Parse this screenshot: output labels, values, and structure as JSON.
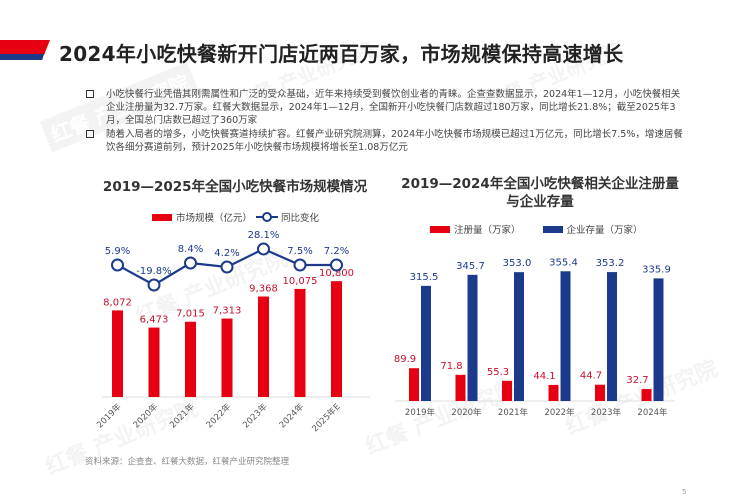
{
  "page": {
    "title": "2024年小吃快餐新开门店近两百万家，市场规模保持高速增长",
    "bullets": [
      "小吃快餐行业凭借其刚需属性和广泛的受众基础，近年来持续受到餐饮创业者的青睐。企查查数据显示，2024年1—12月，小吃快餐相关企业注册量为32.7万家。红餐大数据显示，2024年1—12月，全国新开小吃快餐门店数超过180万家，同比增长21.8%；截至2025年3月，全国总门店数已超过了360万家",
      "随着入局者的增多，小吃快餐赛道持续扩容。红餐产业研究院测算，2024年小吃快餐市场规模已超过1万亿元，同比增长7.5%，增速居餐饮各细分赛道前列，预计2025年小吃快餐市场规模将增长至1.08万亿元"
    ],
    "source": "资料来源：企查查、红餐大数据，红餐产业研究院整理",
    "page_number": "5",
    "watermark": "红餐 产业研究院",
    "colors": {
      "red": "#e60012",
      "blue": "#1c3a8c"
    }
  },
  "chart_data": [
    {
      "type": "bar",
      "title": "2019—2025年全国小吃快餐市场规模情况",
      "categories": [
        "2019年",
        "2020年",
        "2021年",
        "2022年",
        "2023年",
        "2024年",
        "2025年E"
      ],
      "series": [
        {
          "name": "市场规模（亿元）",
          "type": "bar",
          "color": "#e60012",
          "values": [
            8072,
            6473,
            7015,
            7313,
            9368,
            10075,
            10800
          ],
          "labels": [
            "8,072",
            "6,473",
            "7,015",
            "7,313",
            "9,368",
            "10,075",
            "10,800"
          ]
        },
        {
          "name": "同比变化",
          "type": "line",
          "color": "#1c3a8c",
          "values": [
            5.9,
            -19.8,
            8.4,
            4.2,
            28.1,
            7.5,
            7.2
          ],
          "labels": [
            "5.9%",
            "-19.8%",
            "8.4%",
            "4.2%",
            "28.1%",
            "7.5%",
            "7.2%"
          ]
        }
      ],
      "xlabel": "",
      "ylabel": "",
      "grid": false,
      "legend_position": "top"
    },
    {
      "type": "bar",
      "title": "2019—2024年全国小吃快餐相关企业注册量与企业存量",
      "title_lines": [
        "2019—2024年全国小吃快餐相关企业注册量",
        "与企业存量"
      ],
      "categories": [
        "2019年",
        "2020年",
        "2021年",
        "2022年",
        "2023年",
        "2024年"
      ],
      "series": [
        {
          "name": "注册量（万家）",
          "color": "#e60012",
          "values": [
            89.9,
            71.8,
            55.3,
            44.1,
            44.7,
            32.7
          ],
          "labels": [
            "89.9",
            "71.8",
            "55.3",
            "44.1",
            "44.7",
            "32.7"
          ]
        },
        {
          "name": "企业存量（万家）",
          "color": "#1c3a8c",
          "values": [
            315.5,
            345.7,
            353.0,
            355.4,
            353.2,
            335.9
          ],
          "labels": [
            "315.5",
            "345.7",
            "353.0",
            "355.4",
            "353.2",
            "335.9"
          ]
        }
      ],
      "xlabel": "",
      "ylabel": "",
      "grid": false,
      "legend_position": "top"
    }
  ]
}
